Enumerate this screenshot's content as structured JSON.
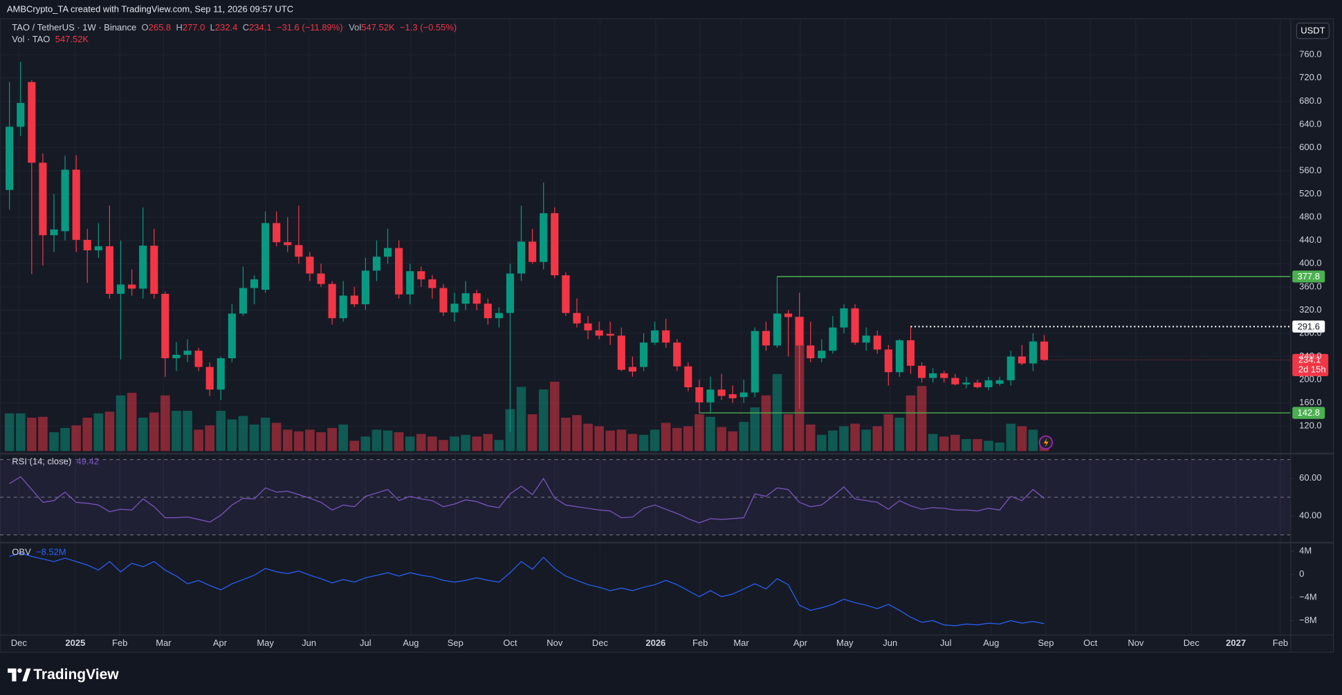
{
  "header": {
    "attribution": "AMBCrypto_TA created with TradingView.com, Sep 11, 2026 09:57 UTC"
  },
  "footer": {
    "brand": "TradingView"
  },
  "chart_data": [
    {
      "type": "candlestick",
      "legend": {
        "symbol": "TAO / TetherUS · 1W · Binance",
        "o": "O",
        "o_value": "265.8",
        "h": "H",
        "h_value": "277.0",
        "l": "L",
        "l_value": "232.4",
        "c": "C",
        "c_value": "234.1",
        "change": "−31.6 (−11.89%)",
        "vol": "Vol",
        "vol_value": "547.52K",
        "vol_change": "−1.3 (−0.55%)"
      },
      "volume_legend": {
        "name": "Vol · TAO",
        "value": "547.52K"
      },
      "currency": "USDT",
      "up_color": "#089981",
      "down_color": "#f23645",
      "candles": [
        [
          527,
          713,
          493,
          636
        ],
        [
          636,
          748,
          620,
          677
        ],
        [
          713,
          716,
          382,
          574
        ],
        [
          574,
          590,
          397,
          449
        ],
        [
          449,
          520,
          420,
          459
        ],
        [
          456,
          586,
          440,
          562
        ],
        [
          562,
          587,
          420,
          441
        ],
        [
          441,
          460,
          367,
          423
        ],
        [
          423,
          470,
          410,
          430
        ],
        [
          430,
          500,
          340,
          348
        ],
        [
          348,
          440,
          235,
          364
        ],
        [
          364,
          390,
          345,
          357
        ],
        [
          357,
          497,
          340,
          431
        ],
        [
          431,
          460,
          340,
          348
        ],
        [
          348,
          352,
          205,
          237
        ],
        [
          237,
          265,
          215,
          243
        ],
        [
          243,
          270,
          230,
          250
        ],
        [
          250,
          255,
          215,
          222
        ],
        [
          222,
          230,
          172,
          183
        ],
        [
          183,
          240,
          165,
          237
        ],
        [
          237,
          330,
          230,
          314
        ],
        [
          314,
          395,
          310,
          358
        ],
        [
          358,
          380,
          330,
          373
        ],
        [
          355,
          490,
          350,
          470
        ],
        [
          470,
          490,
          430,
          437
        ],
        [
          437,
          480,
          420,
          432
        ],
        [
          432,
          500,
          400,
          412
        ],
        [
          412,
          420,
          370,
          383
        ],
        [
          383,
          400,
          360,
          365
        ],
        [
          365,
          370,
          295,
          306
        ],
        [
          306,
          370,
          300,
          345
        ],
        [
          345,
          360,
          325,
          330
        ],
        [
          330,
          410,
          320,
          388
        ],
        [
          388,
          440,
          370,
          412
        ],
        [
          412,
          460,
          400,
          427
        ],
        [
          427,
          440,
          340,
          347
        ],
        [
          347,
          400,
          330,
          387
        ],
        [
          387,
          395,
          360,
          373
        ],
        [
          373,
          380,
          340,
          358
        ],
        [
          358,
          365,
          310,
          316
        ],
        [
          316,
          350,
          300,
          331
        ],
        [
          331,
          370,
          320,
          349
        ],
        [
          349,
          355,
          320,
          331
        ],
        [
          331,
          340,
          295,
          306
        ],
        [
          306,
          325,
          290,
          315
        ],
        [
          315,
          400,
          110,
          383
        ],
        [
          383,
          500,
          370,
          438
        ],
        [
          438,
          460,
          400,
          403
        ],
        [
          403,
          540,
          390,
          487
        ],
        [
          487,
          497,
          375,
          380
        ],
        [
          380,
          385,
          310,
          315
        ],
        [
          315,
          340,
          290,
          297
        ],
        [
          297,
          310,
          270,
          285
        ],
        [
          285,
          300,
          270,
          276
        ],
        [
          279,
          300,
          260,
          276
        ],
        [
          276,
          290,
          215,
          217
        ],
        [
          222,
          240,
          205,
          214
        ],
        [
          222,
          280,
          215,
          264
        ],
        [
          264,
          300,
          260,
          285
        ],
        [
          285,
          305,
          255,
          264
        ],
        [
          264,
          270,
          215,
          223
        ],
        [
          223,
          230,
          180,
          187
        ],
        [
          187,
          200,
          142.8,
          161
        ],
        [
          161,
          205,
          142,
          183
        ],
        [
          183,
          210,
          165,
          172
        ],
        [
          175,
          190,
          160,
          168
        ],
        [
          170,
          200,
          160,
          178
        ],
        [
          178,
          290,
          170,
          284
        ],
        [
          284,
          300,
          250,
          259
        ],
        [
          259,
          377.8,
          255,
          314
        ],
        [
          314,
          320,
          240,
          308
        ],
        [
          308,
          350,
          150,
          259
        ],
        [
          259,
          300,
          230,
          237
        ],
        [
          237,
          270,
          230,
          250
        ],
        [
          250,
          310,
          245,
          290
        ],
        [
          290,
          330,
          280,
          323
        ],
        [
          323,
          330,
          260,
          264
        ],
        [
          264,
          290,
          250,
          276
        ],
        [
          276,
          285,
          245,
          252
        ],
        [
          252,
          260,
          190,
          213
        ],
        [
          213,
          270,
          205,
          268
        ],
        [
          268,
          291.6,
          210,
          224
        ],
        [
          224,
          230,
          195,
          203
        ],
        [
          203,
          220,
          195,
          211
        ],
        [
          211,
          215,
          195,
          203
        ],
        [
          203,
          210,
          190,
          192
        ],
        [
          192,
          205,
          185,
          195
        ],
        [
          195,
          200,
          185,
          187
        ],
        [
          187,
          205,
          182,
          199
        ],
        [
          193,
          205,
          190,
          199
        ],
        [
          199,
          250,
          190,
          240
        ],
        [
          240,
          260,
          225,
          228
        ],
        [
          228,
          280,
          215,
          266
        ],
        [
          265.8,
          277.0,
          232.4,
          234.1
        ]
      ],
      "volume": [
        1606000,
        1606000,
        1423500,
        1460000,
        803000,
        985500,
        1095000,
        1423500,
        1606000,
        1679000,
        2372500,
        2482000,
        1423500,
        1642500,
        2372500,
        1715500,
        1715500,
        912500,
        1095000,
        1715500,
        1350500,
        1496500,
        1131500,
        1423500,
        1204500,
        912500,
        839500,
        912500,
        803000,
        985500,
        1131500,
        438000,
        620500,
        912500,
        876000,
        803000,
        620500,
        730000,
        620500,
        474500,
        620500,
        693500,
        620500,
        730000,
        474500,
        1788500,
        2737500,
        1569500,
        2628000,
        2956500,
        1423500,
        1533000,
        1168000,
        1058500,
        876000,
        912500,
        730000,
        693500,
        912500,
        1204500,
        985500,
        1058500,
        1569500,
        1460000,
        1022000,
        839500,
        1241000,
        1861500,
        2372500,
        3285000,
        1569500,
        5730500,
        1131500,
        693500,
        876000,
        1058500,
        1168000,
        912500,
        1058500,
        1569500,
        1423500,
        2372500,
        2774000,
        730000,
        620500,
        693500,
        511000,
        511000,
        438000,
        365000,
        1168000,
        1058500,
        912500,
        547520
      ],
      "ylim": [
        77,
        822
      ],
      "yticks": [
        {
          "value": 120,
          "label": "120.0"
        },
        {
          "value": 160,
          "label": "160.0"
        },
        {
          "value": 200,
          "label": "200.0"
        },
        {
          "value": 240,
          "label": "240.0"
        },
        {
          "value": 280,
          "label": "280.0"
        },
        {
          "value": 320,
          "label": "320.0"
        },
        {
          "value": 360,
          "label": "360.0"
        },
        {
          "value": 400,
          "label": "400.0"
        },
        {
          "value": 440,
          "label": "440.0"
        },
        {
          "value": 480,
          "label": "480.0"
        },
        {
          "value": 520,
          "label": "520.0"
        },
        {
          "value": 560,
          "label": "560.0"
        },
        {
          "value": 600,
          "label": "600.0"
        },
        {
          "value": 640,
          "label": "640.0"
        },
        {
          "value": 680,
          "label": "680.0"
        },
        {
          "value": 720,
          "label": "720.0"
        },
        {
          "value": 760,
          "label": "760.0"
        }
      ],
      "xlim": [
        -0.85,
        115.15
      ],
      "xticks": [
        {
          "value": 0.85,
          "label": "Dec"
        },
        {
          "value": 5.92,
          "label": "2025"
        },
        {
          "value": 9.92,
          "label": "Feb"
        },
        {
          "value": 13.85,
          "label": "Mar"
        },
        {
          "value": 18.92,
          "label": "Apr"
        },
        {
          "value": 23,
          "label": "May"
        },
        {
          "value": 26.92,
          "label": "Jun"
        },
        {
          "value": 32,
          "label": "Jul"
        },
        {
          "value": 36.08,
          "label": "Aug"
        },
        {
          "value": 40.08,
          "label": "Sep"
        },
        {
          "value": 45,
          "label": "Oct"
        },
        {
          "value": 49,
          "label": "Nov"
        },
        {
          "value": 53.08,
          "label": "Dec"
        },
        {
          "value": 58.08,
          "label": "2026"
        },
        {
          "value": 62.08,
          "label": "Feb"
        },
        {
          "value": 65.77,
          "label": "Mar"
        },
        {
          "value": 71.08,
          "label": "Apr"
        },
        {
          "value": 75.08,
          "label": "May"
        },
        {
          "value": 79.15,
          "label": "Jun"
        },
        {
          "value": 84.15,
          "label": "Jul"
        },
        {
          "value": 88.23,
          "label": "Aug"
        },
        {
          "value": 93.15,
          "label": "Sep"
        },
        {
          "value": 97.15,
          "label": "Oct"
        },
        {
          "value": 101.23,
          "label": "Nov"
        },
        {
          "value": 106.23,
          "label": "Dec"
        },
        {
          "value": 110.23,
          "label": "2027"
        },
        {
          "value": 114.23,
          "label": "Feb"
        }
      ],
      "levels": [
        {
          "value": 377.8,
          "start": 69,
          "color": "#4caf50",
          "style": "solid"
        },
        {
          "value": 291.6,
          "start": 81,
          "color": "#ffffff",
          "style": "dotted"
        },
        {
          "value": 142.8,
          "start": 62,
          "color": "#4caf50",
          "style": "solid"
        }
      ],
      "last_price": {
        "value": 234.1,
        "countdown": "2d 15h",
        "color": "#f23645"
      },
      "grid": true
    },
    {
      "type": "line",
      "name": "RSI (14, close)",
      "color": "#7e57c2",
      "values": [
        57.3,
        60.9,
        54.1,
        47.3,
        48.2,
        52.7,
        47.3,
        46.8,
        45.9,
        42.3,
        43.6,
        43.2,
        49.1,
        45.0,
        39.1,
        39.1,
        39.5,
        38.2,
        36.8,
        40.5,
        45.9,
        49.5,
        49.1,
        55.0,
        52.7,
        53.2,
        51.4,
        49.5,
        47.3,
        43.2,
        45.9,
        45.0,
        50.5,
        52.3,
        54.1,
        48.2,
        50.5,
        49.1,
        48.2,
        45.0,
        46.4,
        48.6,
        47.7,
        45.5,
        44.5,
        51.8,
        55.9,
        51.4,
        60.0,
        49.5,
        45.9,
        45.0,
        44.1,
        43.2,
        42.7,
        39.1,
        39.5,
        44.1,
        45.9,
        43.6,
        41.4,
        38.6,
        36.4,
        38.6,
        38.2,
        38.6,
        39.1,
        51.8,
        50.5,
        55.0,
        54.1,
        47.3,
        45.0,
        45.9,
        50.5,
        55.5,
        49.1,
        48.2,
        47.3,
        43.6,
        48.2,
        45.5,
        43.6,
        44.5,
        44.1,
        43.2,
        43.2,
        42.7,
        44.1,
        43.2,
        50.5,
        48.2,
        54.1,
        49.42
      ],
      "ylim": [
        26.8,
        71.8
      ],
      "yticks": [
        {
          "value": 40,
          "label": "40.00"
        },
        {
          "value": 60,
          "label": "60.00"
        }
      ],
      "bands": [
        70,
        50,
        30
      ]
    },
    {
      "type": "line",
      "name": "OBV",
      "value_label": "−8.52M",
      "color": "#2962ff",
      "values": [
        3.11,
        3.7,
        3.11,
        2.67,
        2.22,
        2.81,
        2.22,
        1.63,
        0.74,
        2.22,
        0.44,
        1.93,
        1.33,
        2.22,
        0.74,
        -0.3,
        -1.63,
        -1.04,
        -1.93,
        -2.67,
        -1.63,
        -0.89,
        -0.15,
        1.04,
        0.44,
        0.15,
        0.59,
        -0.15,
        -0.74,
        -1.48,
        -0.89,
        -1.33,
        -0.59,
        -0.15,
        0.3,
        -0.3,
        0.3,
        -0.15,
        -0.44,
        -1.04,
        -1.33,
        -1.04,
        -0.59,
        -1.04,
        -1.33,
        0.3,
        2.22,
        0.89,
        2.96,
        1.04,
        -0.3,
        -1.04,
        -1.78,
        -2.22,
        -2.81,
        -2.37,
        -2.81,
        -2.22,
        -1.78,
        -1.04,
        -1.78,
        -2.81,
        -3.85,
        -2.81,
        -3.85,
        -3.41,
        -2.52,
        -1.63,
        -2.52,
        -0.74,
        -1.78,
        -5.33,
        -6.22,
        -5.78,
        -5.19,
        -4.3,
        -4.89,
        -5.33,
        -5.93,
        -5.19,
        -6.22,
        -7.41,
        -8.3,
        -8.0,
        -8.74,
        -8.89,
        -8.59,
        -8.74,
        -8.44,
        -8.59,
        -8.0,
        -8.44,
        -8.15,
        -8.52
      ],
      "ylim": [
        -10.5,
        5.2
      ],
      "yticks": [
        {
          "value": 4,
          "label": "4M"
        },
        {
          "value": 0,
          "label": "0"
        },
        {
          "value": -4,
          "label": "−4M"
        },
        {
          "value": -8,
          "label": "−8M"
        }
      ]
    }
  ]
}
